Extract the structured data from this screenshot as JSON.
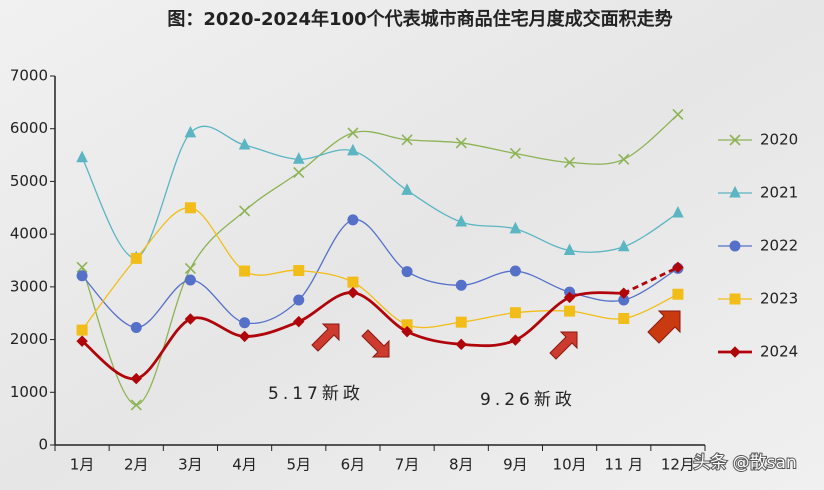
{
  "chart_data": {
    "type": "line",
    "title": "图：2020-2024年100个代表城市商品住宅月度成交面积走势",
    "categories": [
      "1月",
      "2月",
      "3月",
      "4月",
      "5月",
      "6月",
      "7月",
      "8月",
      "9月",
      "10月",
      "11 月",
      "12月"
    ],
    "series": [
      {
        "name": "2020",
        "color": "#8db356",
        "marker": "x",
        "values": [
          3370,
          760,
          3350,
          4440,
          5170,
          5920,
          5790,
          5730,
          5530,
          5360,
          5420,
          6270
        ]
      },
      {
        "name": "2021",
        "color": "#5bb5c2",
        "marker": "triangle",
        "values": [
          5450,
          3550,
          5920,
          5690,
          5420,
          5580,
          4830,
          4230,
          4100,
          3690,
          3760,
          4400
        ]
      },
      {
        "name": "2022",
        "color": "#5570c8",
        "marker": "circle",
        "values": [
          3210,
          2230,
          3130,
          2320,
          2750,
          4270,
          3290,
          3030,
          3300,
          2900,
          2750,
          3350
        ]
      },
      {
        "name": "2023",
        "color": "#f2bd18",
        "marker": "square",
        "values": [
          2180,
          3540,
          4500,
          3300,
          3310,
          3090,
          2280,
          2330,
          2510,
          2540,
          2400,
          2860
        ]
      },
      {
        "name": "2024",
        "color": "#b0050a",
        "marker": "diamond",
        "values": [
          1970,
          1260,
          2390,
          2060,
          2340,
          2890,
          2150,
          1910,
          1990,
          2800,
          2880,
          3370
        ],
        "last_segment": "dashed"
      }
    ],
    "ylim": [
      0,
      7000
    ],
    "yticks": [
      0,
      1000,
      2000,
      3000,
      4000,
      5000,
      6000,
      7000
    ],
    "annotations": [
      "5.17新政",
      "9.26新政"
    ],
    "watermark": "头条 @散san"
  }
}
